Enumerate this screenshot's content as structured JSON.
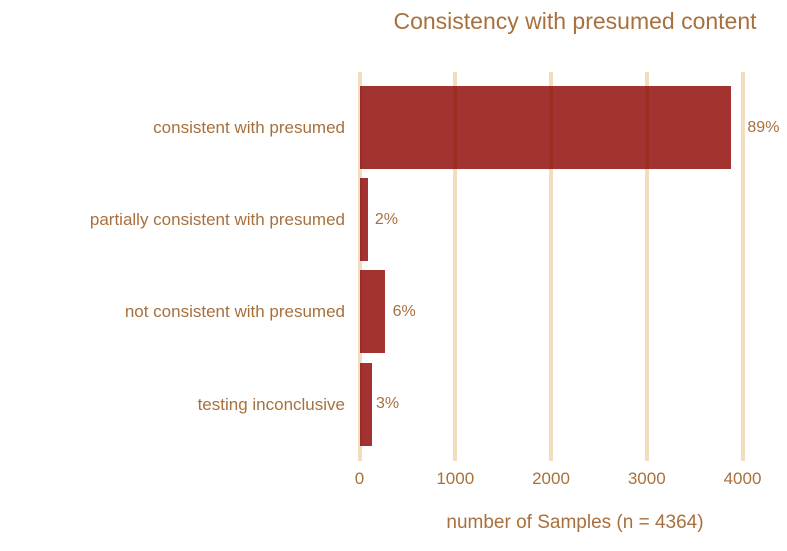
{
  "colors": {
    "bar": "#A33330",
    "gridline": "#F3DCC0",
    "gridline_on_bar": "#9B2D25",
    "text": "#A8703C",
    "title": "#A8703C"
  },
  "chart_data": {
    "type": "bar",
    "orientation": "horizontal",
    "title": "Consistency with presumed content",
    "xlabel": "number of Samples (n = 4364)",
    "ylabel": "",
    "n_total": 4364,
    "categories": [
      "consistent with presumed",
      "partially consistent with presumed",
      "not consistent with presumed",
      "testing inconclusive"
    ],
    "values": [
      3884,
      87,
      262,
      131
    ],
    "percent_labels": [
      "89%",
      "2%",
      "6%",
      "3%"
    ],
    "x_ticks": [
      0,
      1000,
      2000,
      3000,
      4000
    ],
    "xlim": [
      0,
      4000
    ],
    "grid": true,
    "legend": false,
    "bar_color_name": "brick-red",
    "background": "#ffffff"
  }
}
